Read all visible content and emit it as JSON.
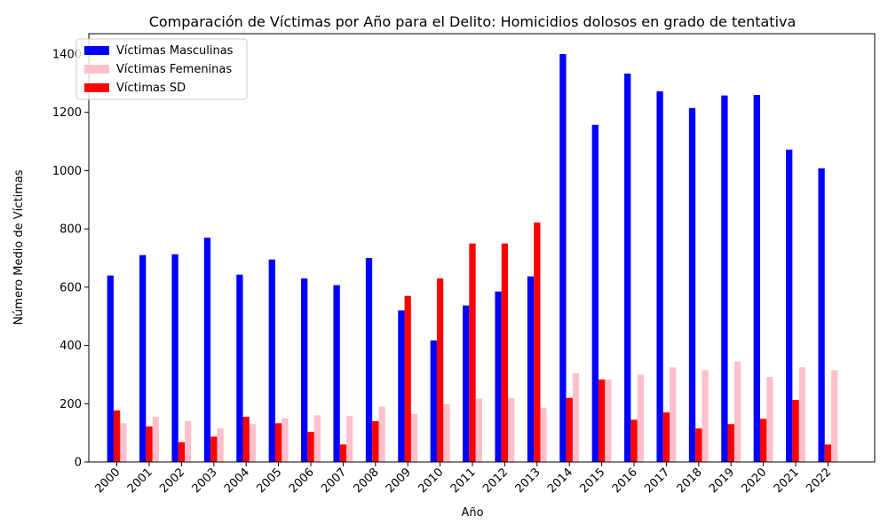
{
  "chart_data": {
    "type": "bar",
    "title": "Comparación de Víctimas por Año para el Delito: Homicidios dolosos en grado de tentativa",
    "xlabel": "Año",
    "ylabel": "Número Medio de Víctimas",
    "ylim": [
      0,
      1470
    ],
    "yticks": [
      0,
      200,
      400,
      600,
      800,
      1000,
      1200,
      1400
    ],
    "grid": false,
    "legend_position": "top-left",
    "categories": [
      "2000",
      "2001",
      "2002",
      "2003",
      "2004",
      "2005",
      "2006",
      "2007",
      "2008",
      "2009",
      "2010",
      "2011",
      "2012",
      "2013",
      "2014",
      "2015",
      "2016",
      "2017",
      "2018",
      "2019",
      "2020",
      "2021",
      "2022"
    ],
    "series": [
      {
        "name": "Víctimas Masculinas",
        "color": "#0000ff",
        "values": [
          640,
          710,
          713,
          770,
          643,
          695,
          630,
          607,
          700,
          520,
          417,
          537,
          585,
          637,
          1400,
          1157,
          1333,
          1272,
          1215,
          1258,
          1260,
          1072,
          1008
        ]
      },
      {
        "name": "Víctimas Femeninas",
        "color": "#ffc0cb",
        "values": [
          133,
          155,
          140,
          115,
          130,
          150,
          160,
          158,
          190,
          165,
          198,
          218,
          220,
          185,
          305,
          283,
          300,
          325,
          315,
          345,
          292,
          325,
          315
        ]
      },
      {
        "name": "Víctimas SD",
        "color": "#ff0000",
        "values": [
          177,
          122,
          68,
          87,
          155,
          133,
          103,
          60,
          140,
          570,
          630,
          750,
          750,
          822,
          220,
          283,
          145,
          170,
          115,
          130,
          148,
          213,
          60
        ]
      }
    ]
  }
}
